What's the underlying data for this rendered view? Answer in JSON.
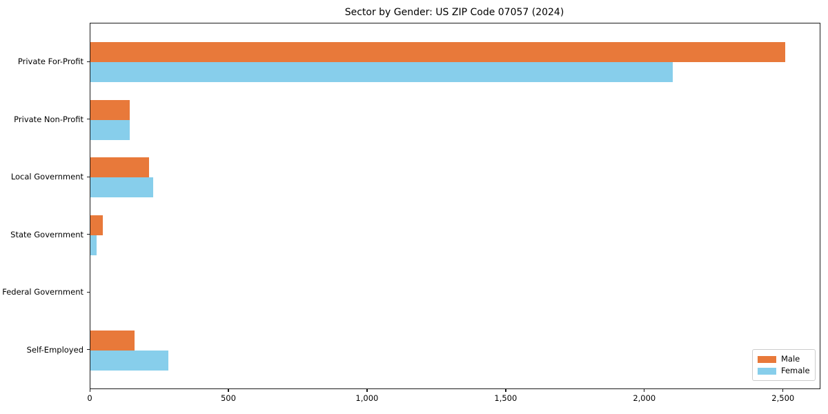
{
  "colors": {
    "male": "#E8793A",
    "female": "#87CEEB",
    "axis": "#1a1a1a",
    "legend_border": "#cccccc",
    "background": "#ffffff"
  },
  "chart_data": {
    "type": "bar",
    "orientation": "horizontal",
    "title": "Sector by Gender: US ZIP Code 07057 (2024)",
    "categories": [
      "Private For-Profit",
      "Private Non-Profit",
      "Local Government",
      "State Government",
      "Federal Government",
      "Self-Employed"
    ],
    "series": [
      {
        "name": "Male",
        "color": "#E8793A",
        "values": [
          2505,
          143,
          212,
          44,
          0,
          160
        ]
      },
      {
        "name": "Female",
        "color": "#87CEEB",
        "values": [
          2100,
          142,
          226,
          23,
          0,
          282
        ]
      }
    ],
    "xlabel": "",
    "ylabel": "",
    "xlim": [
      0,
      2630
    ],
    "x_ticks": [
      0,
      500,
      1000,
      1500,
      2000,
      2500
    ],
    "x_tick_labels": [
      "0",
      "500",
      "1,000",
      "1,500",
      "2,000",
      "2,500"
    ],
    "grid": false,
    "legend_position": "lower right"
  }
}
